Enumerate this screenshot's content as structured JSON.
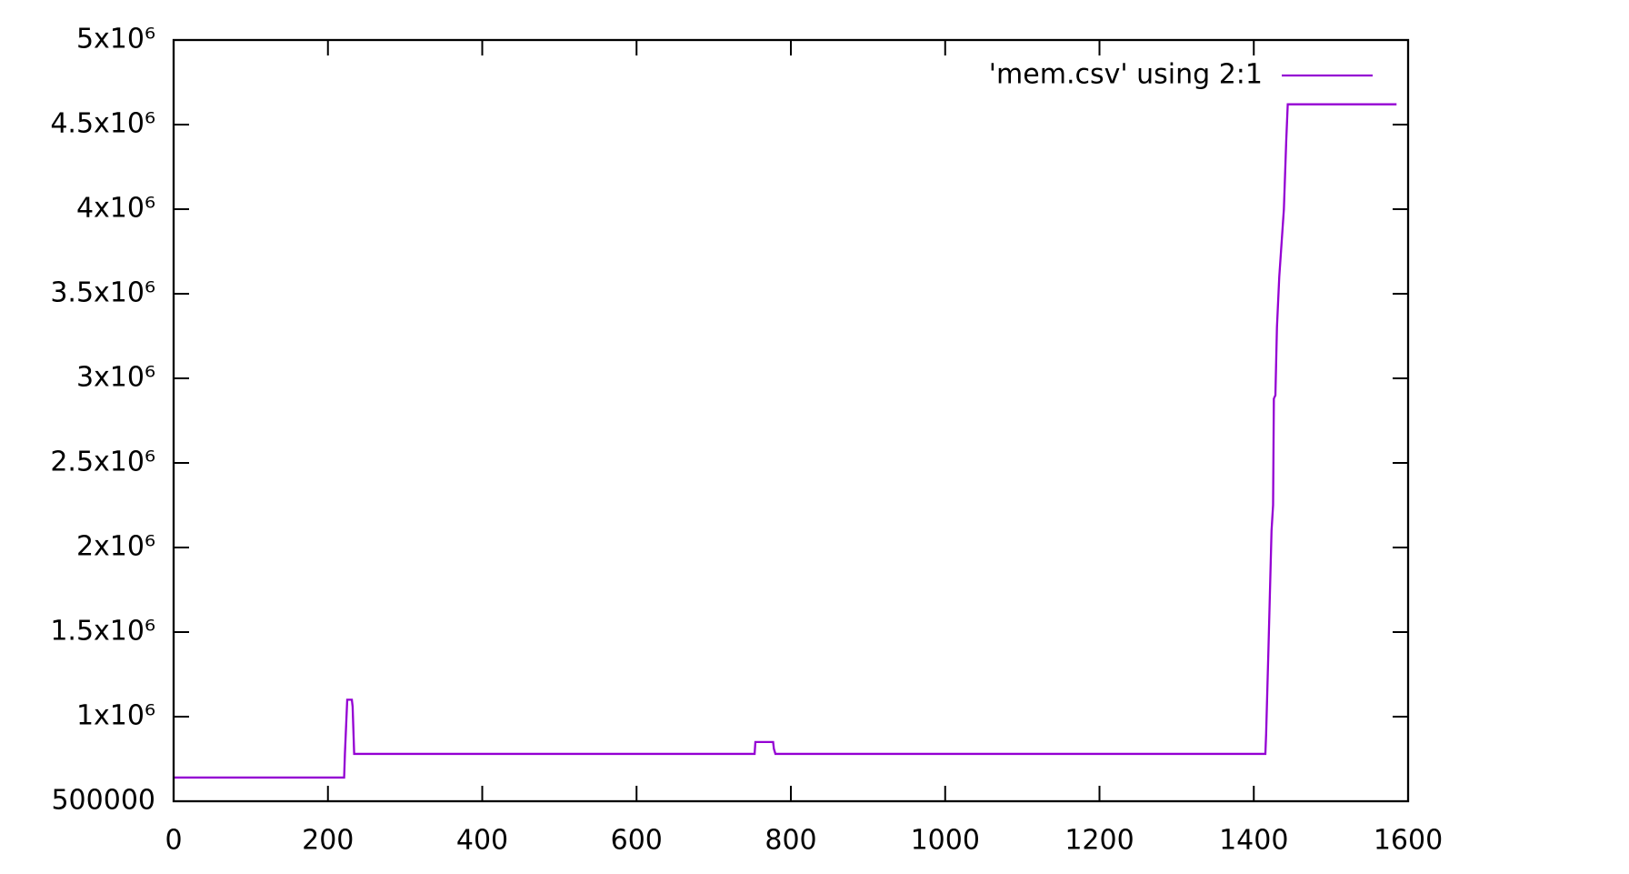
{
  "chart_data": {
    "type": "line",
    "legend_position": "top-right",
    "series": [
      {
        "name": "'mem.csv' using 2:1",
        "color": "#9400d3",
        "x": [
          0,
          221,
          222,
          225,
          231,
          232,
          234,
          753,
          754,
          777,
          778,
          780,
          1415,
          1416,
          1419,
          1423,
          1425,
          1426,
          1428,
          1430,
          1433,
          1436,
          1439,
          1442,
          1444,
          1585
        ],
        "values": [
          640000,
          640000,
          780000,
          1100000,
          1100000,
          1060000,
          780000,
          780000,
          850000,
          850000,
          810000,
          780000,
          780000,
          900000,
          1400000,
          2100000,
          2250000,
          2880000,
          2900000,
          3300000,
          3600000,
          3800000,
          4000000,
          4400000,
          4620000,
          4620000
        ]
      }
    ],
    "xlim": [
      0,
      1600
    ],
    "xticks": [
      0,
      200,
      400,
      600,
      800,
      1000,
      1200,
      1400,
      1600
    ],
    "ylim": [
      500000,
      5000000
    ],
    "yticks": [
      500000,
      {
        "value": 1000000,
        "label": "1x10⁶"
      },
      {
        "value": 1500000,
        "label": "1.5x10⁶"
      },
      {
        "value": 2000000,
        "label": "2x10⁶"
      },
      {
        "value": 2500000,
        "label": "2.5x10⁶"
      },
      {
        "value": 3000000,
        "label": "3x10⁶"
      },
      {
        "value": 3500000,
        "label": "3.5x10⁶"
      },
      {
        "value": 4000000,
        "label": "4x10⁶"
      },
      {
        "value": 4500000,
        "label": "4.5x10⁶"
      },
      {
        "value": 5000000,
        "label": "5x10⁶"
      }
    ]
  }
}
